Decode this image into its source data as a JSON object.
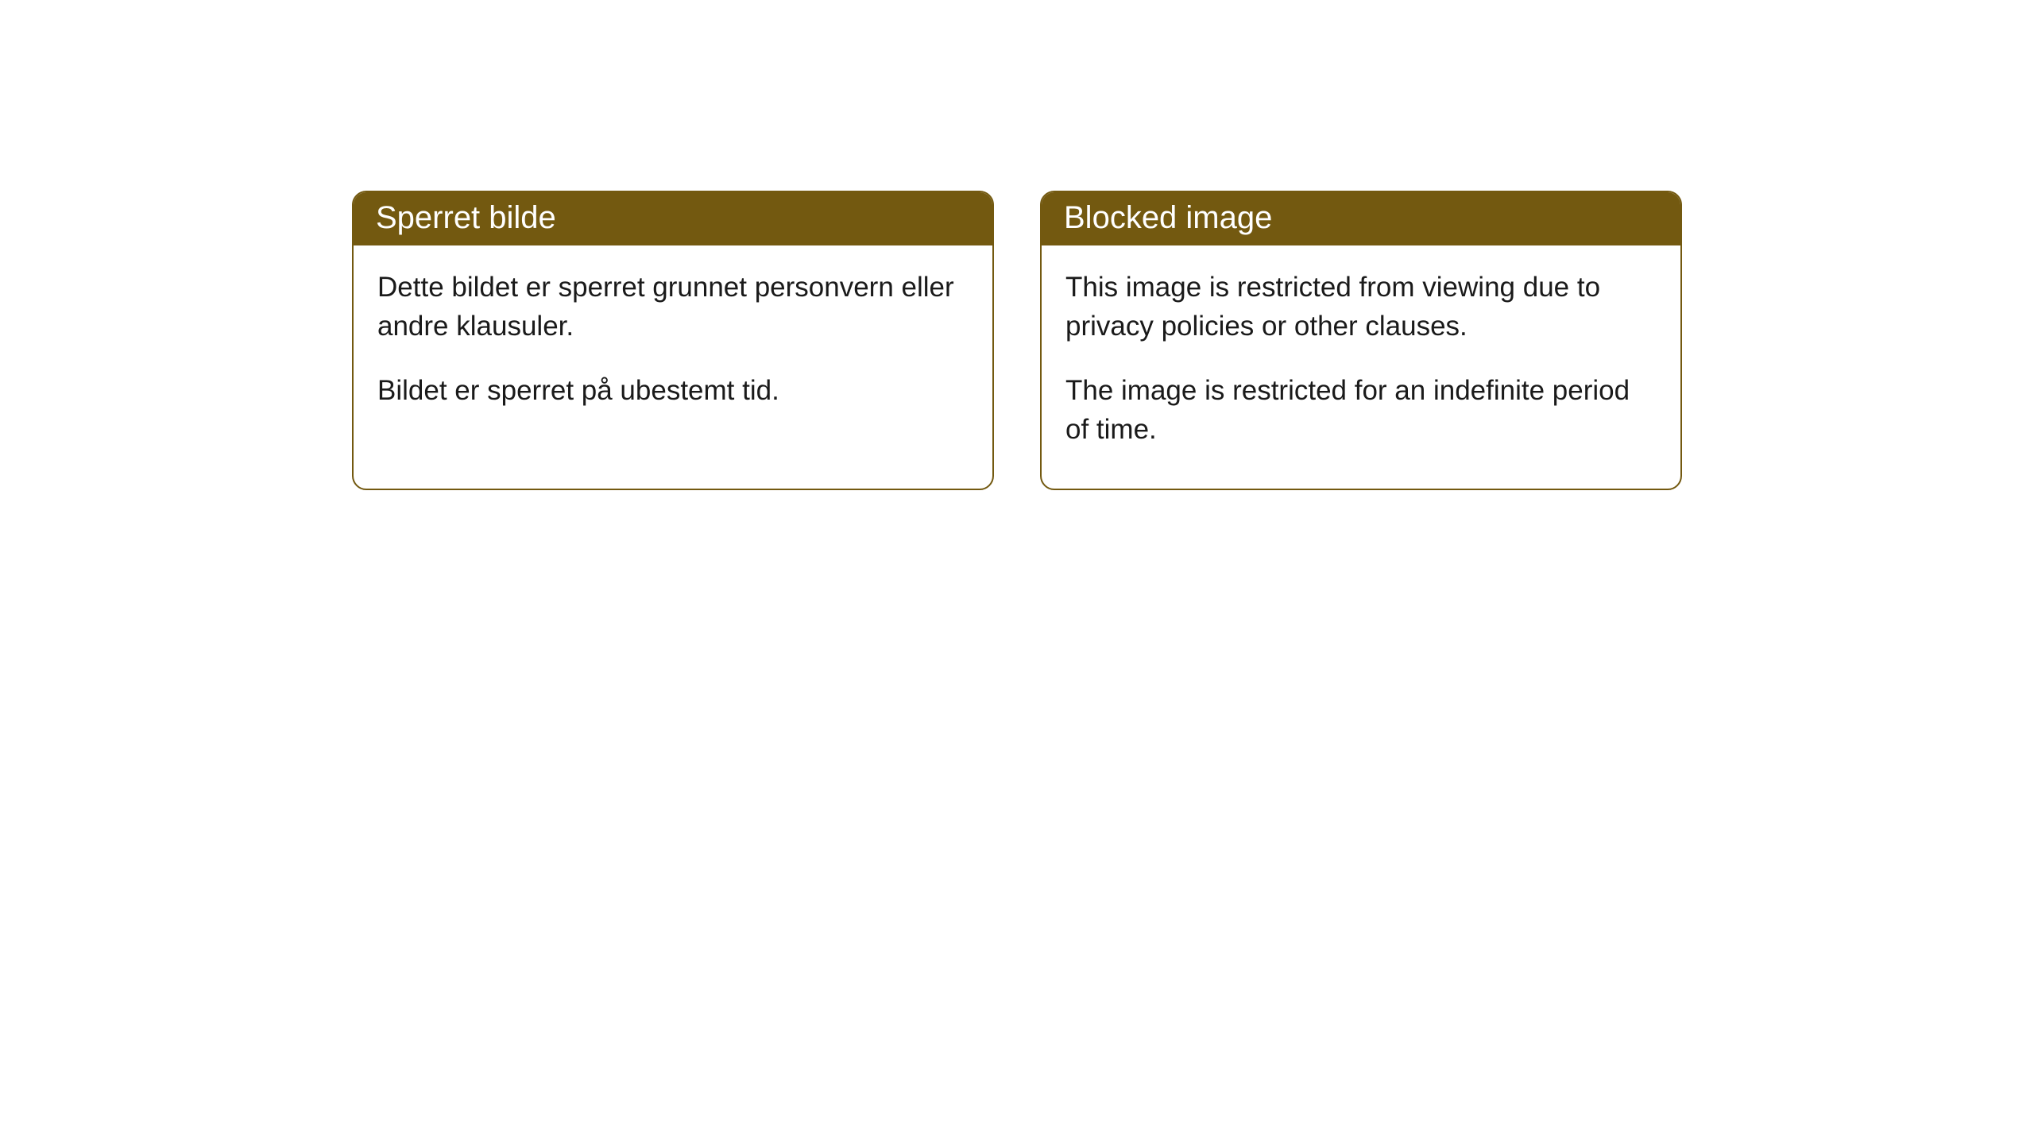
{
  "cards": [
    {
      "title": "Sperret bilde",
      "paragraph1": "Dette bildet er sperret grunnet personvern eller andre klausuler.",
      "paragraph2": "Bildet er sperret på ubestemt tid."
    },
    {
      "title": "Blocked image",
      "paragraph1": "This image is restricted from viewing due to privacy policies or other clauses.",
      "paragraph2": "The image is restricted for an indefinite period of time."
    }
  ],
  "style": {
    "header_bg_color": "#735910",
    "header_text_color": "#ffffff",
    "border_color": "#735910",
    "body_bg_color": "#ffffff",
    "body_text_color": "#1a1a1a",
    "border_radius": 18,
    "header_fontsize": 40,
    "body_fontsize": 35
  }
}
